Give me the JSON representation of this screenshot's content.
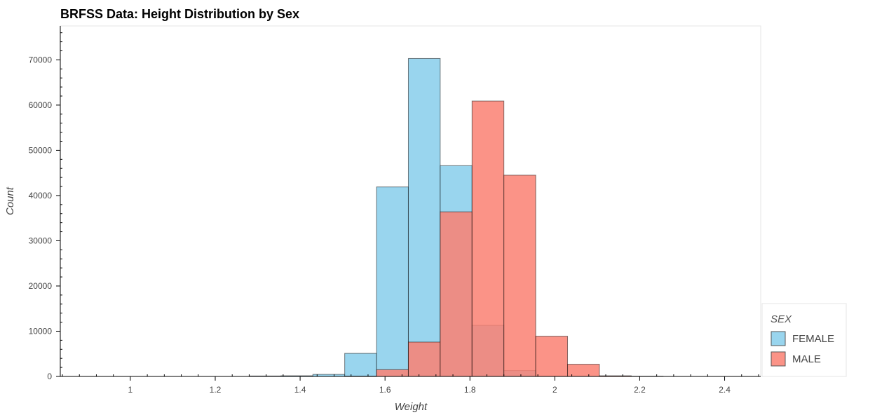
{
  "chart_data": {
    "type": "bar",
    "title": "BRFSS Data: Height Distribution by Sex",
    "xlabel": "Weight",
    "ylabel": "Count",
    "xlim": [
      0.835,
      2.485
    ],
    "ylim": [
      0,
      77500
    ],
    "xticks": [
      "1",
      "1.2",
      "1.4",
      "1.6",
      "1.8",
      "2",
      "2.2",
      "2.4"
    ],
    "yticks": [
      "0",
      "10000",
      "20000",
      "30000",
      "40000",
      "50000",
      "60000",
      "70000"
    ],
    "bin_edges": [
      0.905,
      0.98,
      1.055,
      1.13,
      1.205,
      1.28,
      1.355,
      1.43,
      1.505,
      1.58,
      1.655,
      1.73,
      1.805,
      1.88,
      1.955,
      2.03,
      2.105,
      2.18,
      2.255,
      2.33,
      2.405
    ],
    "legend": {
      "title": "SEX",
      "position": "right-bottom"
    },
    "series": [
      {
        "name": "FEMALE",
        "color": "#87CEEB",
        "values": [
          0,
          0,
          0,
          0,
          0,
          100,
          150,
          450,
          5100,
          41900,
          70300,
          46600,
          11300,
          1300,
          50,
          0,
          0,
          0,
          0,
          0
        ]
      },
      {
        "name": "MALE",
        "color": "#FA8072",
        "values": [
          0,
          0,
          0,
          0,
          0,
          0,
          0,
          0,
          80,
          1500,
          7600,
          36400,
          60900,
          44500,
          8900,
          2700,
          150,
          50,
          0,
          0
        ]
      }
    ]
  }
}
